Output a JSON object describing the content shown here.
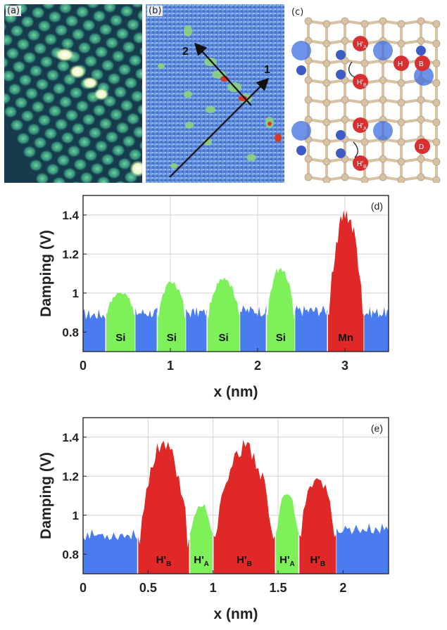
{
  "panels": {
    "a": {
      "label": "(a)"
    },
    "b": {
      "label": "(b)",
      "arrow1_label": "1",
      "arrow2_label": "2"
    },
    "c": {
      "label": "(c)",
      "site_labels": {
        "HA": "H'",
        "HA_sub": "A",
        "HB": "H'",
        "HB_sub": "B",
        "H": "H",
        "B": "B",
        "D": "D"
      }
    }
  },
  "colors": {
    "si": "#7df05a",
    "mn": "#e02828",
    "substrate": "#4a7cf0",
    "atom_bond": "#d8c2a4",
    "atom_blue": "#3d5cc8"
  },
  "chart_data": [
    {
      "panel": "(d)",
      "type": "area",
      "xlabel": "x (nm)",
      "ylabel": "Damping (V)",
      "xlim": [
        0,
        3.5
      ],
      "ylim": [
        0.7,
        1.5
      ],
      "xticks": [
        0,
        1,
        2,
        3
      ],
      "yticks": [
        0.8,
        1,
        1.2,
        1.4
      ],
      "ytick_labels": [
        "0.8",
        "1",
        "1.2",
        "1.4"
      ],
      "xtick_labels": [
        "0",
        "1",
        "2",
        "3"
      ],
      "grid": true,
      "segments": [
        {
          "label": "",
          "color": "substrate",
          "x_start": 0.0,
          "x_end": 0.26,
          "peak": 0.92
        },
        {
          "label": "Si",
          "color": "si",
          "x_start": 0.26,
          "x_end": 0.6,
          "peak": 1.01
        },
        {
          "label": "",
          "color": "substrate",
          "x_start": 0.6,
          "x_end": 0.85,
          "peak": 0.93
        },
        {
          "label": "Si",
          "color": "si",
          "x_start": 0.85,
          "x_end": 1.18,
          "peak": 1.07
        },
        {
          "label": "",
          "color": "substrate",
          "x_start": 1.18,
          "x_end": 1.42,
          "peak": 0.93
        },
        {
          "label": "Si",
          "color": "si",
          "x_start": 1.42,
          "x_end": 1.8,
          "peak": 1.08
        },
        {
          "label": "",
          "color": "substrate",
          "x_start": 1.8,
          "x_end": 2.1,
          "peak": 0.94
        },
        {
          "label": "Si",
          "color": "si",
          "x_start": 2.1,
          "x_end": 2.43,
          "peak": 1.15
        },
        {
          "label": "",
          "color": "substrate",
          "x_start": 2.43,
          "x_end": 2.8,
          "peak": 0.94
        },
        {
          "label": "Mn",
          "color": "mn",
          "x_start": 2.8,
          "x_end": 3.22,
          "peak": 1.45
        },
        {
          "label": "",
          "color": "substrate",
          "x_start": 3.22,
          "x_end": 3.5,
          "peak": 0.93
        }
      ]
    },
    {
      "panel": "(e)",
      "type": "area",
      "xlabel": "x (nm)",
      "ylabel": "Damping (V)",
      "xlim": [
        0,
        2.35
      ],
      "ylim": [
        0.7,
        1.5
      ],
      "xticks": [
        0,
        0.5,
        1,
        1.5,
        2
      ],
      "xtick_labels": [
        "0",
        "0.5",
        "1",
        "1.5",
        "2"
      ],
      "yticks": [
        0.8,
        1,
        1.2,
        1.4
      ],
      "ytick_labels": [
        "0.8",
        "1",
        "1.2",
        "1.4"
      ],
      "grid": true,
      "segments": [
        {
          "label": "",
          "color": "substrate",
          "x_start": 0.0,
          "x_end": 0.42,
          "peak": 0.93
        },
        {
          "label": "H'",
          "sub": "B",
          "color": "mn",
          "x_start": 0.42,
          "x_end": 0.82,
          "peak": 1.4
        },
        {
          "label": "H'",
          "sub": "A",
          "color": "si",
          "x_start": 0.82,
          "x_end": 1.0,
          "peak": 1.07
        },
        {
          "label": "H'",
          "sub": "B",
          "color": "mn",
          "x_start": 1.0,
          "x_end": 1.48,
          "peak": 1.39
        },
        {
          "label": "H'",
          "sub": "A",
          "color": "si",
          "x_start": 1.48,
          "x_end": 1.66,
          "peak": 1.13
        },
        {
          "label": "H'",
          "sub": "B",
          "color": "mn",
          "x_start": 1.66,
          "x_end": 1.95,
          "peak": 1.21
        },
        {
          "label": "",
          "color": "substrate",
          "x_start": 1.95,
          "x_end": 2.35,
          "peak": 0.96
        }
      ]
    }
  ]
}
